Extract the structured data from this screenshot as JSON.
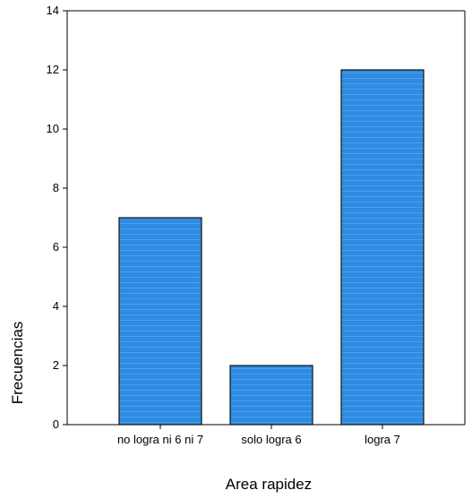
{
  "chart_data": {
    "type": "bar",
    "categories": [
      "no logra ni 6 ni 7",
      "solo logra 6",
      "logra 7"
    ],
    "values": [
      7,
      2,
      12
    ],
    "title": "",
    "xlabel": "Area rapidez",
    "ylabel": "Frecuencias",
    "ylim": [
      0,
      14
    ],
    "yticks": [
      0,
      2,
      4,
      6,
      8,
      10,
      12,
      14
    ],
    "grid": false,
    "bar_color": "#2f8be0",
    "bar_stripe_color": "#4a9ff0",
    "bar_edge_color": "#111111"
  }
}
